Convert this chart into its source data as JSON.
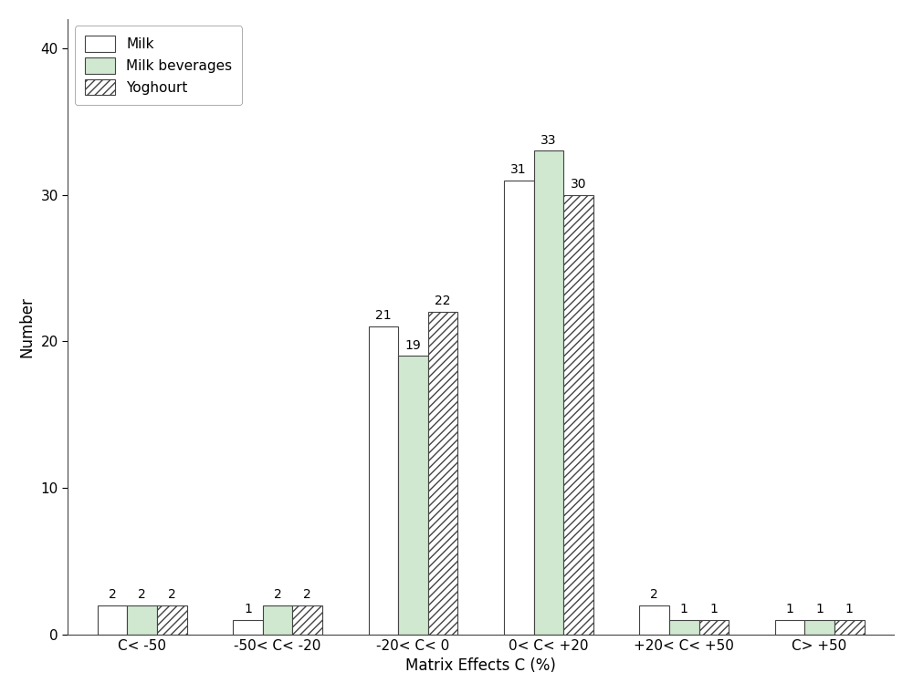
{
  "categories": [
    "C< -50",
    "-50< C< -20",
    "-20< C< 0",
    "0< C< +20",
    "+20< C< +50",
    "C> +50"
  ],
  "milk": [
    2,
    1,
    21,
    31,
    2,
    1
  ],
  "milk_bev": [
    2,
    2,
    19,
    33,
    1,
    1
  ],
  "yoghourt": [
    2,
    2,
    22,
    30,
    1,
    1
  ],
  "bar_width": 0.22,
  "ylim": [
    0,
    42
  ],
  "yticks": [
    0,
    10,
    20,
    30,
    40
  ],
  "ylabel": "Number",
  "xlabel": "Matrix Effects C (%)",
  "legend_labels": [
    "Milk",
    "Milk beverages",
    "Yoghourt"
  ],
  "milk_color": "#ffffff",
  "milk_bev_color": "#d0e8d0",
  "yoghourt_color": "#ffffff",
  "yoghourt_hatch": "////",
  "bar_edge_color": "#444444",
  "annotation_fontsize": 10,
  "label_fontsize": 12,
  "tick_fontsize": 11,
  "legend_fontsize": 11
}
